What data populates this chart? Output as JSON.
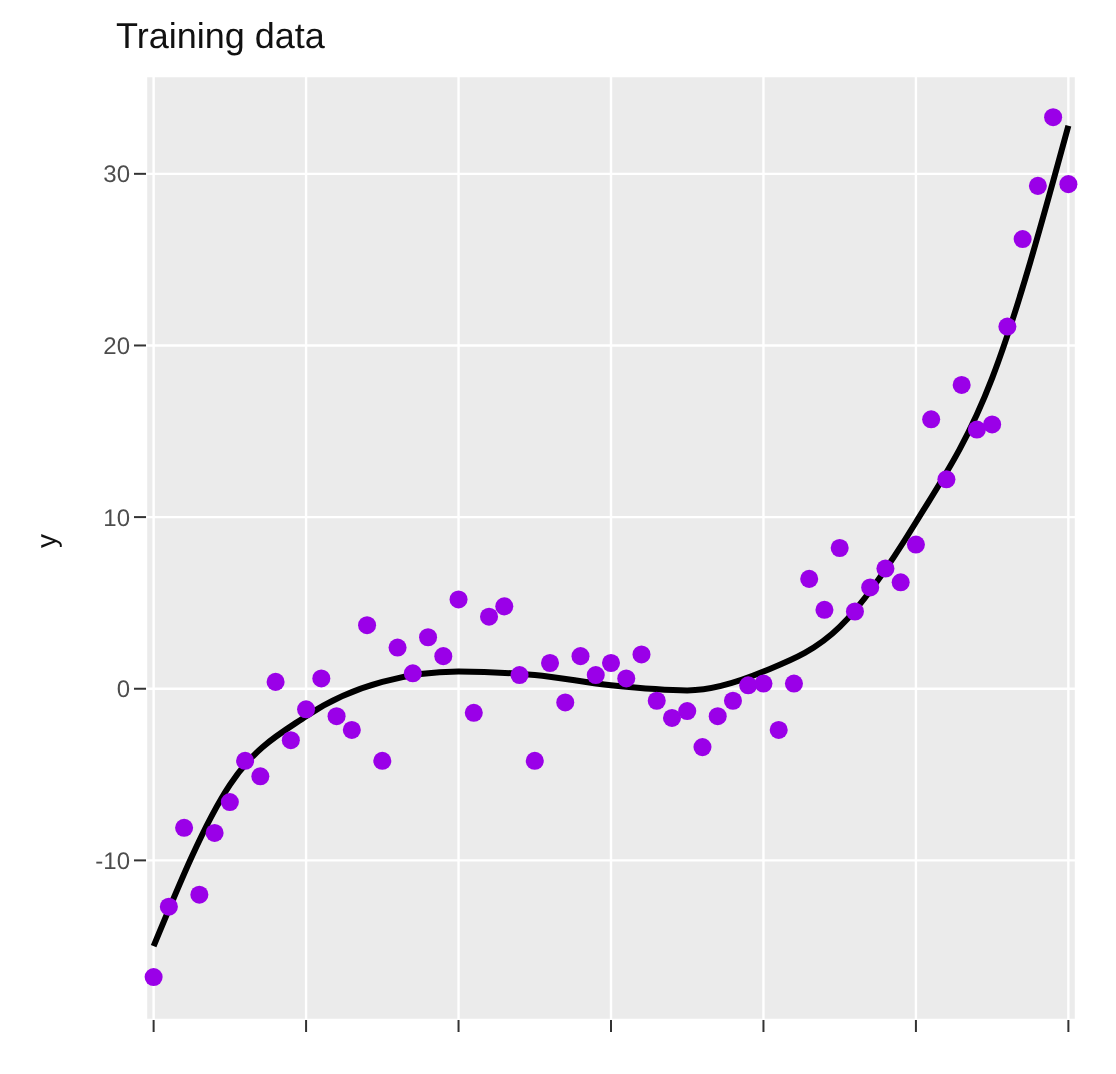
{
  "chart_data": {
    "type": "scatter",
    "title": "Training data",
    "ylabel": "y",
    "categories": [
      null,
      null,
      null,
      null,
      null,
      null,
      null,
      null,
      null,
      null,
      null,
      null,
      null,
      null,
      null,
      null,
      null,
      null,
      null,
      null,
      null,
      null,
      null,
      null,
      null,
      null,
      null,
      null,
      null,
      null,
      null,
      null,
      null,
      null,
      null,
      null,
      null,
      null,
      null,
      null,
      null,
      null,
      null,
      null,
      null,
      null,
      null,
      null,
      null,
      null,
      null,
      null,
      null,
      null,
      null,
      null,
      null,
      null,
      null,
      null,
      null
    ],
    "series": [
      {
        "color": "#9a00e8",
        "marker": "circle",
        "values": [
          -16.8,
          -12.7,
          -8.1,
          -12.0,
          -8.4,
          -6.6,
          -4.2,
          -5.1,
          0.4,
          -3.0,
          -1.2,
          0.6,
          -1.6,
          -2.4,
          3.7,
          -4.2,
          2.4,
          0.9,
          3.0,
          1.9,
          5.2,
          -1.4,
          4.2,
          4.8,
          0.8,
          -4.2,
          1.5,
          -0.8,
          1.9,
          0.8,
          1.5,
          0.6,
          2.0,
          -0.7,
          -1.7,
          -1.3,
          -3.4,
          -1.6,
          -0.7,
          0.2,
          0.3,
          -2.4,
          0.3,
          6.4,
          4.6,
          8.2,
          4.5,
          5.9,
          7.0,
          6.2,
          8.4,
          15.7,
          12.2,
          17.7,
          15.1,
          15.4,
          21.1,
          26.2,
          29.3,
          33.3,
          29.4
        ]
      },
      {
        "type": "line",
        "color": "#000000",
        "values": [
          -15.0,
          null,
          null,
          null,
          null,
          -5.6,
          null,
          null,
          null,
          null,
          -1.6,
          null,
          null,
          null,
          null,
          0.4,
          null,
          null,
          null,
          null,
          1.0,
          null,
          null,
          null,
          null,
          0.8,
          null,
          null,
          null,
          null,
          0.2,
          null,
          null,
          null,
          null,
          -0.1,
          null,
          null,
          null,
          null,
          1.0,
          null,
          null,
          null,
          null,
          3.6,
          null,
          null,
          null,
          null,
          9.7,
          null,
          null,
          null,
          null,
          18.1,
          null,
          null,
          null,
          null,
          32.8
        ]
      }
    ],
    "ylim": [
      -19.3,
      35.7
    ],
    "yticks": [
      -10,
      0,
      10,
      20,
      30
    ],
    "grid": true,
    "legend": false
  }
}
